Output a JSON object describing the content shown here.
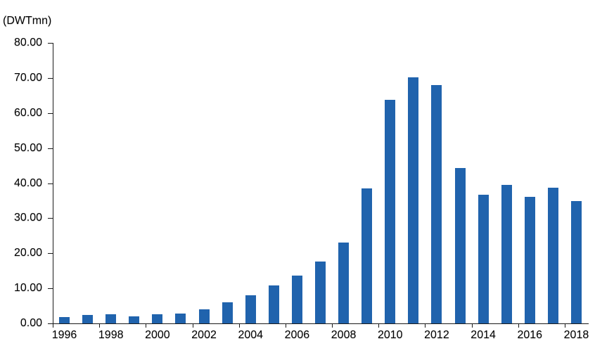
{
  "chart_data": {
    "type": "bar",
    "title": "",
    "unit_label": "(DWTmn)",
    "xlabel": "",
    "ylabel": "DWTmn",
    "categories": [
      1996,
      1997,
      1998,
      1999,
      2000,
      2001,
      2002,
      2003,
      2004,
      2005,
      2006,
      2007,
      2008,
      2009,
      2010,
      2011,
      2012,
      2013,
      2014,
      2015,
      2016,
      2017,
      2018
    ],
    "values": [
      1.8,
      2.4,
      2.7,
      2.1,
      2.7,
      2.9,
      4.0,
      6.0,
      8.1,
      10.8,
      13.7,
      17.7,
      23.0,
      38.5,
      63.7,
      70.2,
      68.0,
      44.4,
      36.6,
      39.5,
      36.0,
      38.6,
      34.8
    ],
    "x_tick_labels": [
      "1996",
      "1998",
      "2000",
      "2002",
      "2004",
      "2006",
      "2008",
      "2010",
      "2012",
      "2014",
      "2016",
      "2018"
    ],
    "y_tick_labels": [
      "0.00",
      "10.00",
      "20.00",
      "30.00",
      "40.00",
      "50.00",
      "60.00",
      "70.00",
      "80.00"
    ],
    "ylim": [
      0,
      80
    ],
    "y_tick_step": 10,
    "grid": "off",
    "legend": "none",
    "bar_color": "#2063AD",
    "axis_color": "#1a1a1a",
    "text_color": "#000000",
    "background_color": "#ffffff"
  }
}
